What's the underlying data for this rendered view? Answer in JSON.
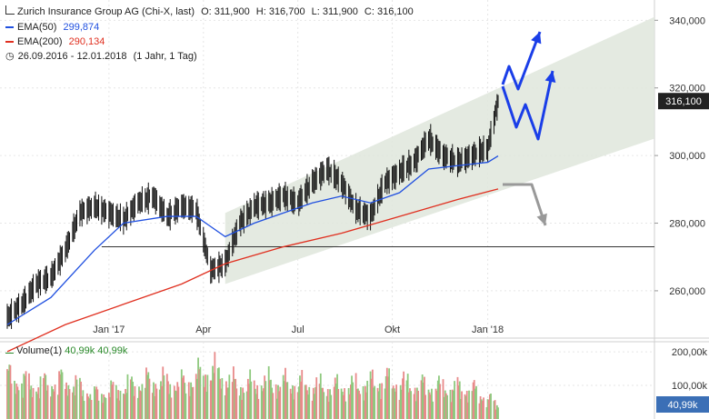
{
  "header": {
    "title": "Zurich Insurance Group AG (Chi-X, last)",
    "open": "O: 311,900",
    "high": "H: 316,700",
    "low": "L: 311,900",
    "close": "C: 316,100",
    "ema50_label": "EMA(50)",
    "ema50_value": "299,874",
    "ema200_label": "EMA(200)",
    "ema200_value": "290,134",
    "range": "26.09.2016 - 12.01.2018",
    "period": "(1 Jahr, 1 Tag)"
  },
  "volume_legend": {
    "label": "Volume(1)",
    "value1": "40,99k",
    "value2": "40,99k"
  },
  "colors": {
    "ema50": "#2050e0",
    "ema200": "#e03020",
    "channel": "#dfe6dc",
    "arrows_up": "#1a3ee8",
    "arrow_down": "#999999",
    "price_tag": "#222222",
    "volume_tag": "#3b6fb6",
    "vol_up": "#8ec97e",
    "vol_down": "#e88a8a"
  },
  "chart_data": {
    "type": "candlestick",
    "price_axis": {
      "ylim": [
        246,
        346
      ],
      "ticks": [
        260,
        280,
        300,
        320,
        340
      ],
      "tick_labels": [
        "260,000",
        "280,000",
        "300,000",
        "320,000",
        "340,000"
      ],
      "last_price_label": "316,100",
      "last_price": 316.1
    },
    "x_axis": {
      "labels": [
        "Jan '17",
        "Apr",
        "Jul",
        "Okt",
        "Jan '18"
      ],
      "label_dates": [
        "2017-01-02",
        "2017-04-03",
        "2017-07-03",
        "2017-10-02",
        "2018-01-02"
      ]
    },
    "price_series": {
      "name": "Zurich Insurance Group AG",
      "dates": [
        "2016-09-26",
        "2016-10-10",
        "2016-10-24",
        "2016-11-07",
        "2016-11-21",
        "2016-12-05",
        "2016-12-19",
        "2017-01-02",
        "2017-01-16",
        "2017-01-30",
        "2017-02-13",
        "2017-02-27",
        "2017-03-13",
        "2017-03-27",
        "2017-04-10",
        "2017-04-24",
        "2017-05-08",
        "2017-05-22",
        "2017-06-05",
        "2017-06-19",
        "2017-07-03",
        "2017-07-17",
        "2017-07-31",
        "2017-08-14",
        "2017-08-28",
        "2017-09-11",
        "2017-09-25",
        "2017-10-09",
        "2017-10-23",
        "2017-11-06",
        "2017-11-20",
        "2017-12-04",
        "2017-12-18",
        "2018-01-02",
        "2018-01-12"
      ],
      "values": [
        252,
        256,
        262,
        264,
        272,
        283,
        285,
        283,
        281,
        286,
        288,
        282,
        285,
        284,
        266,
        268,
        280,
        285,
        286,
        288,
        286,
        292,
        296,
        292,
        284,
        282,
        292,
        295,
        298,
        305,
        300,
        298,
        300,
        302,
        316.1
      ]
    },
    "ema50": {
      "name": "EMA(50)",
      "dates": [
        "2016-09-26",
        "2016-11-07",
        "2016-12-19",
        "2017-01-16",
        "2017-02-27",
        "2017-03-27",
        "2017-04-10",
        "2017-04-24",
        "2017-05-22",
        "2017-06-19",
        "2017-07-17",
        "2017-08-14",
        "2017-09-11",
        "2017-10-09",
        "2017-11-06",
        "2017-12-04",
        "2018-01-02",
        "2018-01-12"
      ],
      "values": [
        250,
        258,
        272,
        280,
        282,
        282,
        279,
        276,
        280,
        283,
        286,
        288,
        286,
        289,
        296,
        297,
        298,
        299.874
      ]
    },
    "ema200": {
      "name": "EMA(200)",
      "dates": [
        "2016-09-26",
        "2016-11-21",
        "2017-01-16",
        "2017-03-13",
        "2017-04-24",
        "2017-06-19",
        "2017-08-14",
        "2017-10-09",
        "2017-12-04",
        "2018-01-12"
      ],
      "values": [
        242,
        250,
        256,
        262,
        268,
        273,
        277,
        282,
        287,
        290.134
      ]
    },
    "horizontal_line": {
      "value": 273
    },
    "volume_axis": {
      "ylim": [
        0,
        230
      ],
      "ticks": [
        100,
        200
      ],
      "tick_labels": [
        "100,00k",
        "200,00k"
      ],
      "last_volume_label": "40,99k"
    },
    "volume_series": {
      "name": "Volume(1)",
      "dates": [
        "2016-09-26",
        "2016-10-24",
        "2016-11-21",
        "2016-12-19",
        "2017-01-16",
        "2017-02-13",
        "2017-03-13",
        "2017-04-10",
        "2017-05-08",
        "2017-06-05",
        "2017-07-03",
        "2017-07-31",
        "2017-08-28",
        "2017-09-25",
        "2017-10-23",
        "2017-11-20",
        "2017-12-18",
        "2018-01-12"
      ],
      "values": [
        120,
        95,
        110,
        70,
        90,
        110,
        100,
        140,
        95,
        105,
        100,
        90,
        95,
        110,
        95,
        90,
        85,
        40.99
      ]
    }
  }
}
